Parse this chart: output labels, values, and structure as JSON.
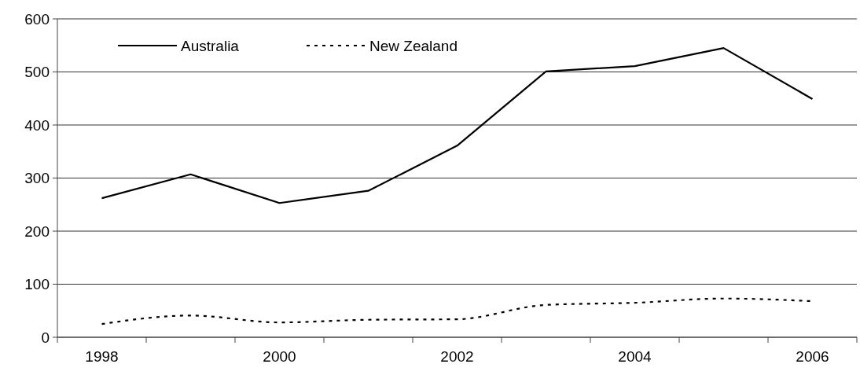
{
  "chart_data": {
    "type": "line",
    "categories": [
      "1998",
      null,
      "2000",
      null,
      "2002",
      null,
      "2004",
      null,
      "2006"
    ],
    "series": [
      {
        "name": "Australia",
        "color": "#000000",
        "line_style": "solid",
        "values": [
          262,
          307,
          253,
          276,
          361,
          501,
          511,
          545,
          449
        ]
      },
      {
        "name": "New Zealand",
        "color": "#000000",
        "line_style": "dotted",
        "values": [
          25,
          41,
          28,
          33,
          34,
          61,
          65,
          73,
          68
        ]
      }
    ],
    "ylim": [
      0,
      600
    ],
    "yticks": [
      0,
      100,
      200,
      300,
      400,
      500,
      600
    ],
    "grid": "y",
    "legend": "top left",
    "marker": "none"
  }
}
